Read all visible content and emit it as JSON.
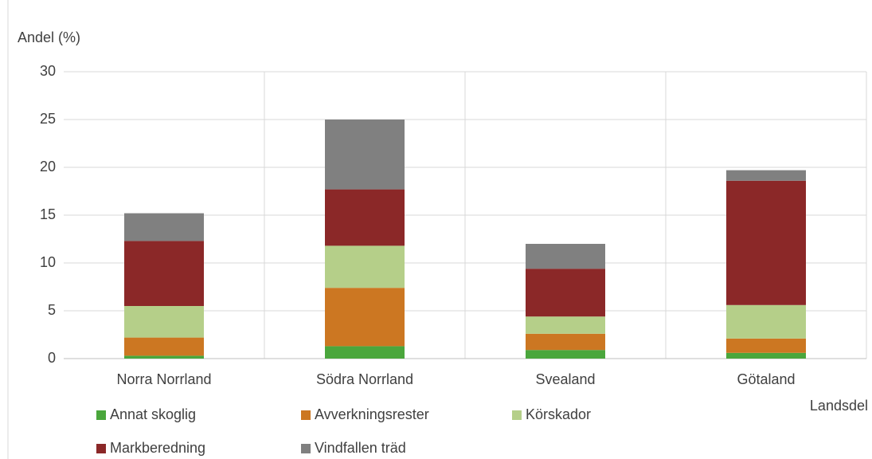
{
  "chart_data": {
    "type": "stacked_bar",
    "y_label": "Andel (%)",
    "x_label": "Landsdel",
    "categories": [
      "Norra Norrland",
      "Södra Norrland",
      "Svealand",
      "Götaland"
    ],
    "series": [
      {
        "name": "Annat skoglig",
        "color": "#4aa63c",
        "values": [
          0.3,
          1.3,
          0.9,
          0.6
        ]
      },
      {
        "name": "Avverkningsrester",
        "color": "#cc7722",
        "values": [
          1.9,
          6.1,
          1.7,
          1.5
        ]
      },
      {
        "name": "Körskador",
        "color": "#b5cf89",
        "values": [
          3.3,
          4.4,
          1.8,
          3.5
        ]
      },
      {
        "name": "Markberedning",
        "color": "#8b2828",
        "values": [
          6.8,
          5.9,
          5.0,
          13.0
        ]
      },
      {
        "name": "Vindfallen träd",
        "color": "#808080",
        "values": [
          2.9,
          7.3,
          2.6,
          1.1
        ]
      }
    ],
    "ylim": [
      0,
      30
    ],
    "yticks": [
      0,
      5,
      10,
      15,
      20,
      25,
      30
    ],
    "grid": true
  }
}
